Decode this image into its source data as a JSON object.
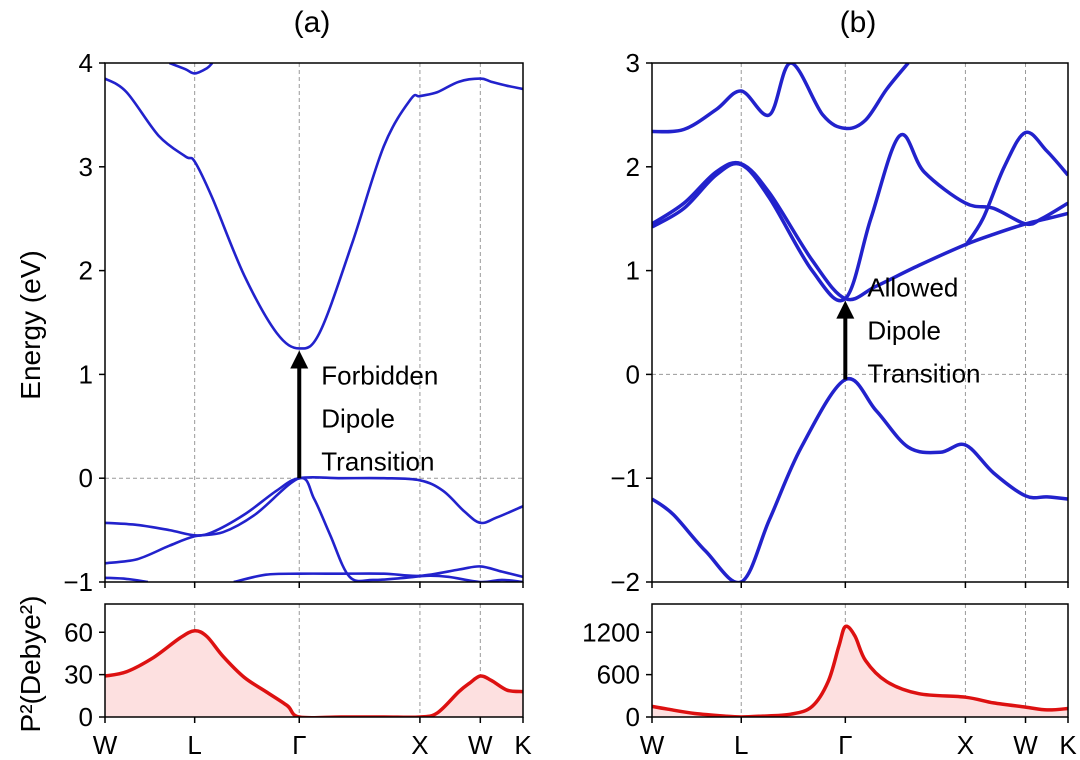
{
  "chart_data": [
    {
      "id": "a",
      "title": "(a)",
      "type": "line",
      "ylabel": "Energy (eV)",
      "ylim": [
        -1,
        4
      ],
      "yticks": [
        -1,
        0,
        1,
        2,
        3,
        4
      ],
      "ytick_labels": [
        "−1",
        "0",
        "1",
        "2",
        "3",
        "4"
      ],
      "kpoints": [
        {
          "label": "W",
          "x": 0
        },
        {
          "label": "L",
          "x": 0.836
        },
        {
          "label": "Γ",
          "x": 1.811
        },
        {
          "label": "X",
          "x": 2.936
        },
        {
          "label": "W",
          "x": 3.499
        },
        {
          "label": "K",
          "x": 3.897
        }
      ],
      "xlim": [
        0,
        3.897
      ],
      "band_color": "#2222cc",
      "bands": [
        {
          "x": [
            0,
            0.2,
            0.5,
            0.75,
            0.836,
            1.0,
            1.3,
            1.6,
            1.811,
            2.0,
            2.3,
            2.6,
            2.85,
            2.936,
            3.1,
            3.3,
            3.499,
            3.6,
            3.75,
            3.897
          ],
          "y": [
            3.85,
            3.72,
            3.3,
            3.1,
            3.05,
            2.7,
            1.95,
            1.4,
            1.25,
            1.4,
            2.25,
            3.2,
            3.65,
            3.68,
            3.72,
            3.82,
            3.85,
            3.82,
            3.78,
            3.75
          ]
        },
        {
          "x": [
            0.6,
            0.75,
            0.836,
            0.95,
            1.0
          ],
          "y": [
            4.0,
            3.94,
            3.9,
            3.95,
            4.0
          ]
        },
        {
          "x": [
            0,
            0.3,
            0.6,
            0.836,
            1.0,
            1.3,
            1.6,
            1.811,
            2.2,
            2.6,
            2.936,
            3.15,
            3.35,
            3.499,
            3.65,
            3.897
          ],
          "y": [
            -0.43,
            -0.45,
            -0.5,
            -0.55,
            -0.52,
            -0.35,
            -0.12,
            0,
            0,
            0,
            -0.02,
            -0.12,
            -0.32,
            -0.43,
            -0.38,
            -0.27
          ]
        },
        {
          "x": [
            0,
            0.3,
            0.6,
            0.836,
            1.1,
            1.4,
            1.811,
            1.95,
            2.1,
            2.28,
            2.5,
            2.8,
            3.0,
            3.2,
            3.499,
            3.7,
            3.897
          ],
          "y": [
            -0.82,
            -0.78,
            -0.65,
            -0.56,
            -0.52,
            -0.35,
            0,
            -0.2,
            -0.55,
            -0.95,
            -0.98,
            -0.96,
            -0.94,
            -0.95,
            -1.0,
            -0.98,
            -1.0
          ]
        },
        {
          "x": [
            1.2,
            1.5,
            1.811,
            2.2,
            2.6,
            2.936,
            3.3,
            3.499,
            3.7,
            3.897
          ],
          "y": [
            -1.0,
            -0.93,
            -0.92,
            -0.92,
            -0.92,
            -0.94,
            -0.88,
            -0.85,
            -0.9,
            -0.95
          ]
        },
        {
          "x": [
            0,
            0.2,
            0.4
          ],
          "y": [
            -0.96,
            -0.97,
            -1.0
          ]
        }
      ],
      "annotation": {
        "lines": [
          "Forbidden",
          "Dipole",
          "Transition"
        ],
        "arrow_from": 0,
        "arrow_to": 1.25,
        "arrow_x": 1.811
      }
    },
    {
      "id": "b",
      "title": "(b)",
      "type": "line",
      "ylabel": "",
      "ylim": [
        -2,
        3
      ],
      "yticks": [
        -2,
        -1,
        0,
        1,
        2,
        3
      ],
      "ytick_labels": [
        "−2",
        "−1",
        "0",
        "1",
        "2",
        "3"
      ],
      "kpoints": [
        {
          "label": "W",
          "x": 0
        },
        {
          "label": "L",
          "x": 0.836
        },
        {
          "label": "Γ",
          "x": 1.811
        },
        {
          "label": "X",
          "x": 2.936
        },
        {
          "label": "W",
          "x": 3.499
        },
        {
          "label": "K",
          "x": 3.897
        }
      ],
      "xlim": [
        0,
        3.897
      ],
      "band_color": "#2222cc",
      "bands": [
        {
          "x": [
            0,
            0.2,
            0.5,
            0.836,
            1.1,
            1.4,
            1.811,
            2.1,
            2.4,
            2.7,
            2.936,
            3.2,
            3.499,
            3.7,
            3.897
          ],
          "y": [
            -1.2,
            -1.35,
            -1.7,
            -2.0,
            -1.4,
            -0.7,
            -0.05,
            -0.35,
            -0.7,
            -0.75,
            -0.68,
            -0.95,
            -1.17,
            -1.18,
            -1.2
          ]
        },
        {
          "x": [
            0,
            0.3,
            0.6,
            0.836,
            1.1,
            1.5,
            1.811,
            2.1,
            2.5,
            2.936,
            3.2,
            3.499,
            3.7,
            3.897
          ],
          "y": [
            1.45,
            1.65,
            1.95,
            2.03,
            1.75,
            1.1,
            0.73,
            0.85,
            1.05,
            1.25,
            1.35,
            1.45,
            1.5,
            1.55
          ]
        },
        {
          "x": [
            0,
            0.3,
            0.6,
            0.836,
            1.1,
            1.5,
            1.811,
            2.05,
            2.32,
            2.55,
            2.936,
            3.2,
            3.499,
            3.65,
            3.897
          ],
          "y": [
            1.42,
            1.6,
            1.92,
            2.02,
            1.7,
            1.0,
            0.73,
            1.5,
            2.3,
            1.95,
            1.65,
            1.6,
            1.45,
            1.5,
            1.65
          ]
        },
        {
          "x": [
            2.936,
            3.1,
            3.3,
            3.499,
            3.7,
            3.897
          ],
          "y": [
            1.24,
            1.5,
            2.0,
            2.33,
            2.15,
            1.92
          ]
        },
        {
          "x": [
            0,
            0.3,
            0.6,
            0.836,
            1.1,
            1.3,
            1.6,
            1.811,
            2.0,
            2.2,
            2.4
          ],
          "y": [
            2.34,
            2.36,
            2.55,
            2.73,
            2.5,
            3.0,
            2.5,
            2.37,
            2.45,
            2.75,
            3.0
          ]
        }
      ],
      "annotation": {
        "lines": [
          "Allowed",
          "Dipole",
          "Transition"
        ],
        "arrow_from": -0.05,
        "arrow_to": 0.73,
        "arrow_x": 1.811
      }
    },
    {
      "id": "a-p2",
      "type": "area",
      "ylabel": "P²(Debye²)",
      "ylim": [
        0,
        80
      ],
      "yticks": [
        0,
        30,
        60
      ],
      "ytick_labels": [
        "0",
        "30",
        "60"
      ],
      "xlim": [
        0,
        3.897
      ],
      "color": "#dd1111",
      "fill": "#fde0e0",
      "x": [
        0,
        0.2,
        0.45,
        0.7,
        0.836,
        0.95,
        1.1,
        1.3,
        1.5,
        1.7,
        1.811,
        2.2,
        2.6,
        2.936,
        3.1,
        3.3,
        3.4,
        3.499,
        3.6,
        3.75,
        3.897
      ],
      "y": [
        29,
        32,
        42,
        56,
        61,
        57,
        43,
        28,
        18,
        8,
        0,
        0,
        0,
        0,
        3,
        18,
        24,
        29,
        26,
        19,
        18
      ]
    },
    {
      "id": "b-p2",
      "type": "area",
      "ylabel": "",
      "ylim": [
        0,
        1600
      ],
      "yticks": [
        0,
        600,
        1200
      ],
      "ytick_labels": [
        "0",
        "600",
        "1200"
      ],
      "xlim": [
        0,
        3.897
      ],
      "color": "#dd1111",
      "fill": "#fde0e0",
      "x": [
        0,
        0.15,
        0.4,
        0.7,
        0.836,
        1.0,
        1.3,
        1.5,
        1.65,
        1.75,
        1.811,
        1.9,
        2.0,
        2.2,
        2.5,
        2.936,
        3.2,
        3.499,
        3.7,
        3.897
      ],
      "y": [
        150,
        110,
        50,
        10,
        0,
        10,
        40,
        150,
        500,
        1000,
        1280,
        1150,
        800,
        500,
        330,
        280,
        200,
        140,
        100,
        120
      ]
    }
  ]
}
